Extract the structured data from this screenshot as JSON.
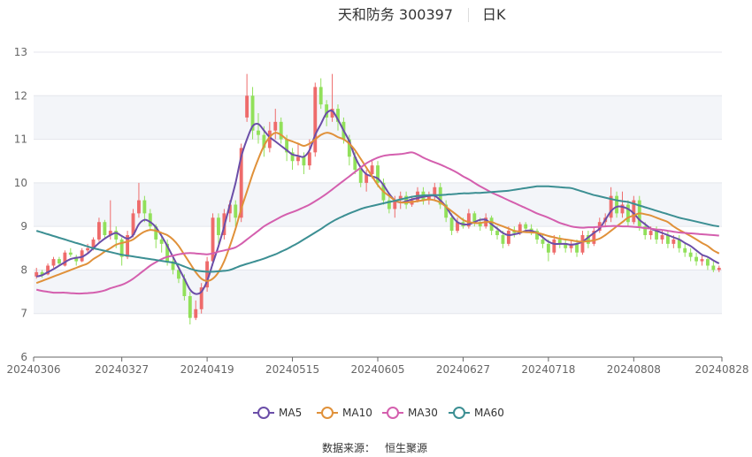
{
  "header": {
    "title": "天和防务 300397",
    "period": "日K"
  },
  "source": {
    "label": "数据来源：",
    "name": "恒生聚源"
  },
  "colors": {
    "up": "#ee6b6b",
    "down": "#91e05a",
    "ma5": "#6b4ea8",
    "ma10": "#e0913a",
    "ma30": "#d45fae",
    "ma60": "#3c8f93",
    "band": "#f3f5f9",
    "grid": "#e4e6ec",
    "axis": "#666666"
  },
  "chart_data": {
    "type": "candlestick",
    "title": "天和防务 300397",
    "ylim": [
      6,
      13
    ],
    "yticks": [
      6,
      7,
      8,
      9,
      10,
      11,
      12,
      13
    ],
    "xtick_labels": [
      "20240306",
      "20240327",
      "20240419",
      "20240515",
      "20240605",
      "20240627",
      "20240718",
      "20240808",
      "20240828"
    ],
    "xtick_index": [
      0,
      15,
      30,
      45,
      60,
      75,
      90,
      105,
      120
    ],
    "grid": true,
    "legend_placement": "bottom",
    "series": [
      {
        "name": "MA5",
        "color": "#6b4ea8"
      },
      {
        "name": "MA10",
        "color": "#e0913a"
      },
      {
        "name": "MA30",
        "color": "#d45fae"
      },
      {
        "name": "MA60",
        "color": "#3c8f93"
      }
    ],
    "candles": [
      [
        7.85,
        7.95,
        8.05,
        7.8
      ],
      [
        7.95,
        7.88,
        8.0,
        7.82
      ],
      [
        7.9,
        8.1,
        8.15,
        7.88
      ],
      [
        8.1,
        8.25,
        8.3,
        8.05
      ],
      [
        8.25,
        8.15,
        8.3,
        8.1
      ],
      [
        8.1,
        8.4,
        8.45,
        8.08
      ],
      [
        8.4,
        8.35,
        8.5,
        8.3
      ],
      [
        8.3,
        8.2,
        8.35,
        8.1
      ],
      [
        8.2,
        8.45,
        8.5,
        8.18
      ],
      [
        8.45,
        8.5,
        8.6,
        8.4
      ],
      [
        8.5,
        8.7,
        8.75,
        8.45
      ],
      [
        8.7,
        9.1,
        9.2,
        8.65
      ],
      [
        9.1,
        8.8,
        9.15,
        8.7
      ],
      [
        8.8,
        8.9,
        9.6,
        8.7
      ],
      [
        8.9,
        8.7,
        9.0,
        8.5
      ],
      [
        8.7,
        8.3,
        8.75,
        8.1
      ],
      [
        8.3,
        8.8,
        8.9,
        8.25
      ],
      [
        8.8,
        9.3,
        9.4,
        8.75
      ],
      [
        9.3,
        9.6,
        10.0,
        9.2
      ],
      [
        9.6,
        9.3,
        9.7,
        9.1
      ],
      [
        9.3,
        9.0,
        9.4,
        8.9
      ],
      [
        9.0,
        8.7,
        9.05,
        8.5
      ],
      [
        8.7,
        8.6,
        8.8,
        8.4
      ],
      [
        8.6,
        8.2,
        8.7,
        8.1
      ],
      [
        8.2,
        8.0,
        8.3,
        7.9
      ],
      [
        8.0,
        7.8,
        8.1,
        7.7
      ],
      [
        7.8,
        7.4,
        7.9,
        7.3
      ],
      [
        7.4,
        6.9,
        7.5,
        6.75
      ],
      [
        6.9,
        7.1,
        7.3,
        6.85
      ],
      [
        7.1,
        7.6,
        7.7,
        7.0
      ],
      [
        7.6,
        8.2,
        8.3,
        7.5
      ],
      [
        8.2,
        9.2,
        9.3,
        8.1
      ],
      [
        9.2,
        8.8,
        9.3,
        8.6
      ],
      [
        8.8,
        9.3,
        9.4,
        8.7
      ],
      [
        9.3,
        9.5,
        9.6,
        9.1
      ],
      [
        9.5,
        9.2,
        9.6,
        9.0
      ],
      [
        9.2,
        10.8,
        10.9,
        9.1
      ],
      [
        11.5,
        12.0,
        12.5,
        11.4
      ],
      [
        12.0,
        11.2,
        12.2,
        11.0
      ],
      [
        11.2,
        11.1,
        11.6,
        10.9
      ],
      [
        11.1,
        10.8,
        11.3,
        10.6
      ],
      [
        10.8,
        11.2,
        11.4,
        10.7
      ],
      [
        11.2,
        11.4,
        11.7,
        11.0
      ],
      [
        11.4,
        11.0,
        11.5,
        10.9
      ],
      [
        11.0,
        10.7,
        11.1,
        10.5
      ],
      [
        10.7,
        10.5,
        10.8,
        10.3
      ],
      [
        10.5,
        10.6,
        10.9,
        10.4
      ],
      [
        10.6,
        10.4,
        10.7,
        10.2
      ],
      [
        10.4,
        10.7,
        11.0,
        10.3
      ],
      [
        10.7,
        12.2,
        12.3,
        10.6
      ],
      [
        12.2,
        11.8,
        12.4,
        11.7
      ],
      [
        11.8,
        11.5,
        11.9,
        11.3
      ],
      [
        11.5,
        11.7,
        12.5,
        11.4
      ],
      [
        11.7,
        11.4,
        11.8,
        11.2
      ],
      [
        11.4,
        11.0,
        11.5,
        10.9
      ],
      [
        11.0,
        10.6,
        11.1,
        10.4
      ],
      [
        10.6,
        10.3,
        10.7,
        10.2
      ],
      [
        10.3,
        10.0,
        10.4,
        9.9
      ],
      [
        10.0,
        10.2,
        10.3,
        9.8
      ],
      [
        10.2,
        10.4,
        10.5,
        10.1
      ],
      [
        10.4,
        10.0,
        10.5,
        9.9
      ],
      [
        10.0,
        9.6,
        10.1,
        9.5
      ],
      [
        9.6,
        9.4,
        9.7,
        9.3
      ],
      [
        9.4,
        9.6,
        9.7,
        9.2
      ],
      [
        9.6,
        9.7,
        9.8,
        9.4
      ],
      [
        9.7,
        9.5,
        9.8,
        9.4
      ],
      [
        9.5,
        9.6,
        9.7,
        9.45
      ],
      [
        9.6,
        9.8,
        9.9,
        9.55
      ],
      [
        9.8,
        9.6,
        9.9,
        9.5
      ],
      [
        9.6,
        9.7,
        9.8,
        9.5
      ],
      [
        9.7,
        9.9,
        10.0,
        9.6
      ],
      [
        9.9,
        9.5,
        10.0,
        9.4
      ],
      [
        9.5,
        9.2,
        9.6,
        9.1
      ],
      [
        9.2,
        8.9,
        9.3,
        8.8
      ],
      [
        8.9,
        9.1,
        9.2,
        8.85
      ],
      [
        9.1,
        9.0,
        9.2,
        8.95
      ],
      [
        9.0,
        9.3,
        9.4,
        8.95
      ],
      [
        9.3,
        9.1,
        9.35,
        9.0
      ],
      [
        9.1,
        9.0,
        9.2,
        8.9
      ],
      [
        9.0,
        9.2,
        9.3,
        8.95
      ],
      [
        9.2,
        8.9,
        9.25,
        8.8
      ],
      [
        8.9,
        8.8,
        9.0,
        8.7
      ],
      [
        8.8,
        8.6,
        8.9,
        8.5
      ],
      [
        8.6,
        8.9,
        9.0,
        8.55
      ],
      [
        8.9,
        8.85,
        9.0,
        8.75
      ],
      [
        8.85,
        9.05,
        9.1,
        8.8
      ],
      [
        9.05,
        8.95,
        9.1,
        8.85
      ],
      [
        8.95,
        8.9,
        9.05,
        8.8
      ],
      [
        8.9,
        8.7,
        8.95,
        8.6
      ],
      [
        8.7,
        8.6,
        8.8,
        8.5
      ],
      [
        8.6,
        8.4,
        8.7,
        8.2
      ],
      [
        8.4,
        8.7,
        8.8,
        8.35
      ],
      [
        8.7,
        8.6,
        8.8,
        8.5
      ],
      [
        8.6,
        8.5,
        8.7,
        8.4
      ],
      [
        8.5,
        8.6,
        8.7,
        8.4
      ],
      [
        8.6,
        8.4,
        8.7,
        8.3
      ],
      [
        8.4,
        8.8,
        8.9,
        8.35
      ],
      [
        8.8,
        8.6,
        8.9,
        8.5
      ],
      [
        8.6,
        8.9,
        9.0,
        8.55
      ],
      [
        8.9,
        9.1,
        9.2,
        8.85
      ],
      [
        9.1,
        9.2,
        9.3,
        9.0
      ],
      [
        9.2,
        9.7,
        9.9,
        9.1
      ],
      [
        9.7,
        9.3,
        9.8,
        9.2
      ],
      [
        9.3,
        9.5,
        9.8,
        9.2
      ],
      [
        9.5,
        9.1,
        9.6,
        9.0
      ],
      [
        9.1,
        9.6,
        9.7,
        9.05
      ],
      [
        9.6,
        9.0,
        9.7,
        8.9
      ],
      [
        9.0,
        8.8,
        9.1,
        8.7
      ],
      [
        8.8,
        8.9,
        9.0,
        8.7
      ],
      [
        8.9,
        8.7,
        9.0,
        8.6
      ],
      [
        8.7,
        8.8,
        8.9,
        8.6
      ],
      [
        8.8,
        8.6,
        8.9,
        8.5
      ],
      [
        8.6,
        8.7,
        8.8,
        8.5
      ],
      [
        8.7,
        8.5,
        8.8,
        8.4
      ],
      [
        8.5,
        8.4,
        8.6,
        8.3
      ],
      [
        8.4,
        8.3,
        8.5,
        8.2
      ],
      [
        8.3,
        8.2,
        8.4,
        8.1
      ],
      [
        8.2,
        8.25,
        8.35,
        8.1
      ],
      [
        8.25,
        8.1,
        8.3,
        8.0
      ],
      [
        8.1,
        8.0,
        8.2,
        7.95
      ],
      [
        8.0,
        8.05,
        8.1,
        7.95
      ]
    ],
    "ma5": [
      7.85,
      7.88,
      7.95,
      8.02,
      8.1,
      8.18,
      8.25,
      8.28,
      8.3,
      8.38,
      8.5,
      8.62,
      8.72,
      8.8,
      8.85,
      8.78,
      8.72,
      8.8,
      9.05,
      9.15,
      9.1,
      8.98,
      8.78,
      8.55,
      8.3,
      8.05,
      7.8,
      7.55,
      7.45,
      7.5,
      7.75,
      8.15,
      8.55,
      9.0,
      9.5,
      10.0,
      10.6,
      11.0,
      11.3,
      11.35,
      11.2,
      11.05,
      10.95,
      10.85,
      10.75,
      10.65,
      10.62,
      10.6,
      10.75,
      11.1,
      11.35,
      11.6,
      11.65,
      11.45,
      11.2,
      10.95,
      10.6,
      10.35,
      10.2,
      10.15,
      10.1,
      9.95,
      9.75,
      9.6,
      9.55,
      9.58,
      9.62,
      9.65,
      9.68,
      9.7,
      9.7,
      9.6,
      9.45,
      9.25,
      9.1,
      9.05,
      9.05,
      9.1,
      9.15,
      9.15,
      9.05,
      8.95,
      8.85,
      8.8,
      8.82,
      8.85,
      8.9,
      8.9,
      8.85,
      8.75,
      8.65,
      8.6,
      8.6,
      8.6,
      8.58,
      8.6,
      8.65,
      8.75,
      8.85,
      8.95,
      9.15,
      9.35,
      9.45,
      9.45,
      9.4,
      9.3,
      9.15,
      9.05,
      8.95,
      8.9,
      8.85,
      8.8,
      8.75,
      8.7,
      8.62,
      8.55,
      8.45,
      8.35,
      8.3,
      8.22,
      8.15
    ],
    "ma10": [
      7.7,
      7.75,
      7.8,
      7.85,
      7.9,
      7.95,
      8.0,
      8.05,
      8.1,
      8.15,
      8.25,
      8.33,
      8.42,
      8.5,
      8.58,
      8.62,
      8.65,
      8.7,
      8.8,
      8.88,
      8.92,
      8.9,
      8.85,
      8.8,
      8.7,
      8.55,
      8.35,
      8.15,
      7.95,
      7.8,
      7.75,
      7.8,
      7.95,
      8.2,
      8.55,
      8.95,
      9.4,
      9.8,
      10.2,
      10.55,
      10.85,
      11.05,
      11.15,
      11.1,
      11.0,
      10.95,
      10.9,
      10.85,
      10.9,
      11.0,
      11.1,
      11.15,
      11.12,
      11.05,
      11.0,
      10.9,
      10.75,
      10.55,
      10.35,
      10.15,
      9.95,
      9.8,
      9.7,
      9.6,
      9.55,
      9.55,
      9.56,
      9.58,
      9.6,
      9.62,
      9.6,
      9.55,
      9.45,
      9.35,
      9.25,
      9.15,
      9.1,
      9.08,
      9.08,
      9.1,
      9.1,
      9.05,
      9.0,
      8.95,
      8.9,
      8.88,
      8.87,
      8.86,
      8.85,
      8.82,
      8.78,
      8.75,
      8.72,
      8.7,
      8.68,
      8.66,
      8.65,
      8.66,
      8.68,
      8.72,
      8.8,
      8.9,
      9.0,
      9.1,
      9.2,
      9.25,
      9.3,
      9.28,
      9.25,
      9.2,
      9.15,
      9.1,
      9.0,
      8.92,
      8.85,
      8.78,
      8.7,
      8.62,
      8.55,
      8.45,
      8.38
    ],
    "ma30": [
      7.55,
      7.52,
      7.5,
      7.48,
      7.48,
      7.48,
      7.47,
      7.46,
      7.46,
      7.47,
      7.48,
      7.5,
      7.53,
      7.58,
      7.62,
      7.66,
      7.72,
      7.8,
      7.9,
      8.0,
      8.1,
      8.18,
      8.25,
      8.3,
      8.33,
      8.36,
      8.38,
      8.39,
      8.38,
      8.37,
      8.36,
      8.38,
      8.42,
      8.45,
      8.48,
      8.52,
      8.6,
      8.7,
      8.8,
      8.9,
      9.0,
      9.08,
      9.15,
      9.22,
      9.28,
      9.33,
      9.38,
      9.44,
      9.5,
      9.58,
      9.66,
      9.75,
      9.85,
      9.95,
      10.05,
      10.15,
      10.25,
      10.35,
      10.45,
      10.52,
      10.58,
      10.62,
      10.64,
      10.65,
      10.66,
      10.68,
      10.7,
      10.65,
      10.58,
      10.52,
      10.47,
      10.42,
      10.36,
      10.3,
      10.23,
      10.15,
      10.08,
      10.0,
      9.92,
      9.85,
      9.78,
      9.72,
      9.66,
      9.6,
      9.54,
      9.48,
      9.42,
      9.36,
      9.3,
      9.25,
      9.2,
      9.14,
      9.08,
      9.04,
      9.0,
      8.98,
      8.97,
      8.98,
      8.98,
      8.99,
      9.0,
      9.01,
      9.01,
      9.0,
      9.0,
      8.99,
      8.98,
      8.96,
      8.95,
      8.93,
      8.92,
      8.9,
      8.88,
      8.86,
      8.85,
      8.84,
      8.83,
      8.82,
      8.81,
      8.8,
      8.79
    ],
    "ma60": [
      8.9,
      8.86,
      8.82,
      8.78,
      8.74,
      8.7,
      8.66,
      8.62,
      8.58,
      8.54,
      8.5,
      8.47,
      8.44,
      8.41,
      8.38,
      8.35,
      8.33,
      8.31,
      8.29,
      8.27,
      8.25,
      8.23,
      8.21,
      8.19,
      8.17,
      8.13,
      8.08,
      8.03,
      7.99,
      7.97,
      7.96,
      7.96,
      7.97,
      7.98,
      8.0,
      8.05,
      8.1,
      8.14,
      8.18,
      8.22,
      8.26,
      8.31,
      8.36,
      8.42,
      8.48,
      8.55,
      8.62,
      8.7,
      8.78,
      8.86,
      8.94,
      9.03,
      9.11,
      9.18,
      9.24,
      9.3,
      9.35,
      9.4,
      9.44,
      9.47,
      9.5,
      9.53,
      9.56,
      9.59,
      9.62,
      9.65,
      9.68,
      9.7,
      9.71,
      9.72,
      9.72,
      9.72,
      9.73,
      9.74,
      9.75,
      9.76,
      9.76,
      9.77,
      9.77,
      9.78,
      9.79,
      9.8,
      9.81,
      9.82,
      9.84,
      9.86,
      9.88,
      9.9,
      9.92,
      9.92,
      9.92,
      9.91,
      9.9,
      9.89,
      9.88,
      9.84,
      9.8,
      9.76,
      9.72,
      9.69,
      9.66,
      9.63,
      9.6,
      9.58,
      9.56,
      9.52,
      9.48,
      9.44,
      9.4,
      9.36,
      9.32,
      9.28,
      9.24,
      9.2,
      9.17,
      9.14,
      9.11,
      9.08,
      9.05,
      9.02,
      9.0
    ]
  }
}
